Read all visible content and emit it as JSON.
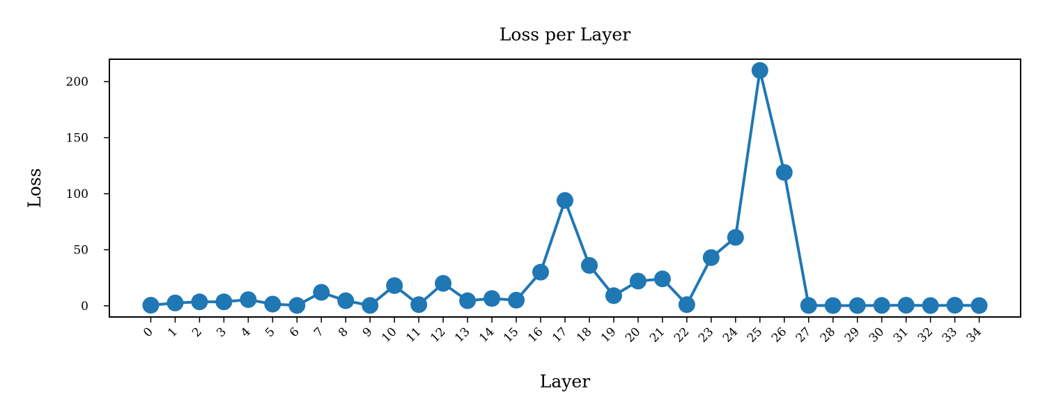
{
  "chart_data": {
    "type": "line",
    "title": "Loss per Layer",
    "xlabel": "Layer",
    "ylabel": "Loss",
    "x": [
      0,
      1,
      2,
      3,
      4,
      5,
      6,
      7,
      8,
      9,
      10,
      11,
      12,
      13,
      14,
      15,
      16,
      17,
      18,
      19,
      20,
      21,
      22,
      23,
      24,
      25,
      26,
      27,
      28,
      29,
      30,
      31,
      32,
      33,
      34
    ],
    "x_tick_labels": [
      "0",
      "1",
      "2",
      "3",
      "4",
      "5",
      "6",
      "7",
      "8",
      "9",
      "10",
      "11",
      "12",
      "13",
      "14",
      "15",
      "16",
      "17",
      "18",
      "19",
      "20",
      "21",
      "22",
      "23",
      "24",
      "25",
      "26",
      "27",
      "28",
      "29",
      "30",
      "31",
      "32",
      "33",
      "34"
    ],
    "y_ticks": [
      0,
      50,
      100,
      150,
      200
    ],
    "y_tick_labels": [
      "0",
      "50",
      "100",
      "150",
      "200"
    ],
    "ylim": [
      -10,
      220
    ],
    "xlim": [
      -1.7,
      35.7
    ],
    "grid": false,
    "series": [
      {
        "color": "#1f77b4",
        "marker": "circle",
        "values": [
          0.5,
          2.5,
          3.5,
          3.5,
          5.5,
          1.5,
          0.3,
          12,
          4.5,
          0.3,
          18,
          1,
          20,
          4.5,
          6.5,
          5,
          30,
          94,
          36,
          9,
          22,
          24,
          1,
          43,
          61,
          210,
          119,
          0.3,
          0.2,
          0.2,
          0.3,
          0.5,
          0.2,
          0.5,
          0.2
        ]
      }
    ]
  }
}
